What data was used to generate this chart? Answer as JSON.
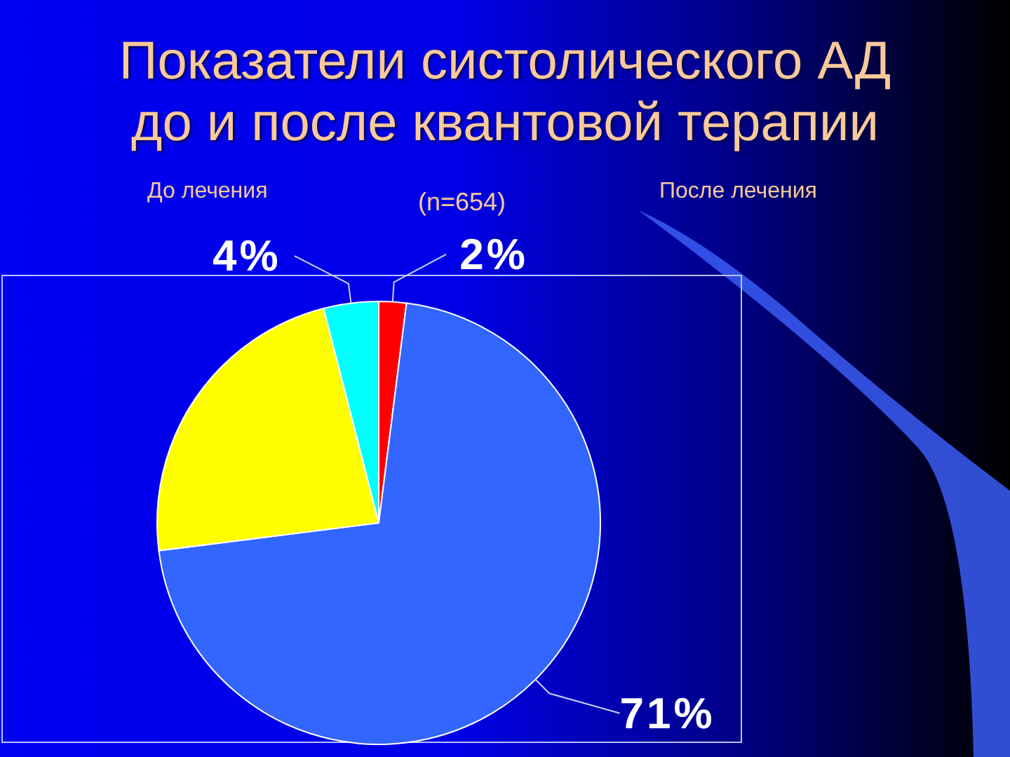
{
  "chart_data": {
    "type": "pie",
    "title": "Показатели систолического АД до и после квантовой терапии",
    "categories": [
      null,
      null,
      null,
      null
    ],
    "values": [
      2,
      71,
      23,
      4
    ],
    "colors": [
      "#ff0000",
      "#3366ff",
      "#ffff00",
      "#00ffff"
    ],
    "value_labels": [
      "2%",
      "71%",
      null,
      "4%"
    ],
    "annotations": [
      "До лечения",
      "(n=654)",
      "После лечения"
    ]
  }
}
